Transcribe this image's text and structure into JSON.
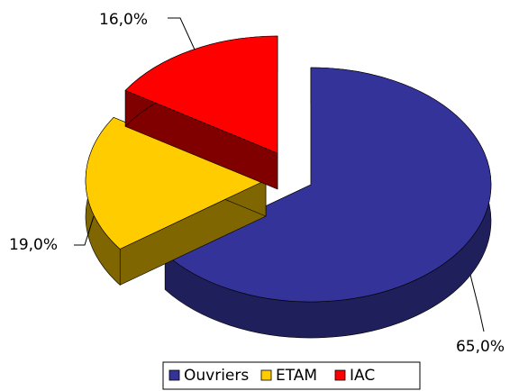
{
  "chart_data": {
    "type": "pie3d",
    "categories": [
      "Ouvriers",
      "ETAM",
      "IAC"
    ],
    "values": [
      65,
      19,
      16
    ],
    "value_labels": [
      "65,0%",
      "19,0%",
      "16,0%"
    ],
    "colors": [
      "#333399",
      "#ffcc00",
      "#ff0000"
    ],
    "side_colors": [
      "#1f1f5c",
      "#806600",
      "#800000"
    ],
    "legend": "bottom"
  }
}
